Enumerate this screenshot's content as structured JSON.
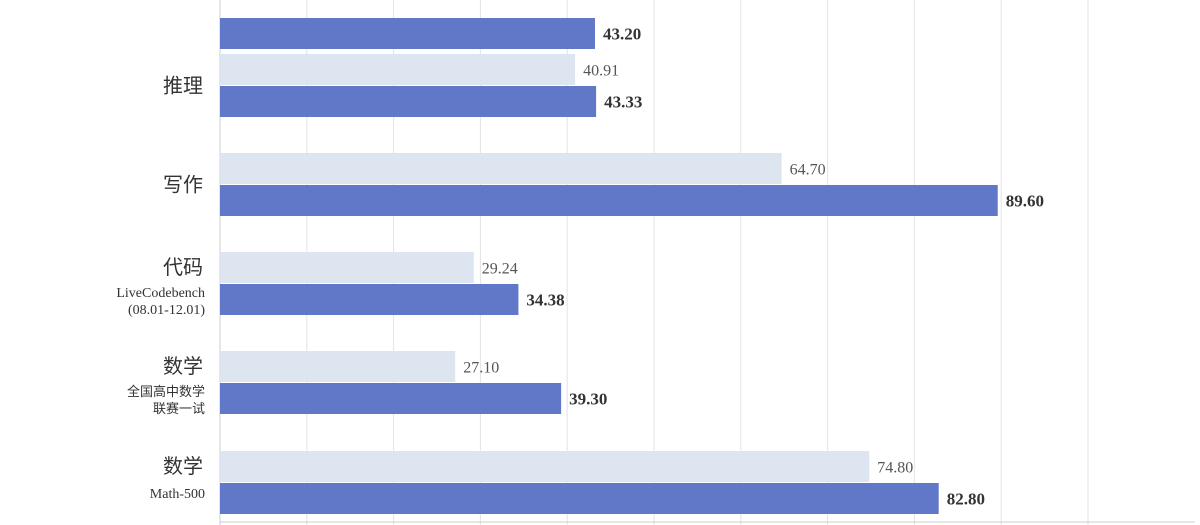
{
  "chart_data": {
    "type": "bar",
    "orientation": "horizontal",
    "grid": true,
    "xlim": [
      0,
      100
    ],
    "categories": [
      {
        "title": "",
        "subtitle": []
      },
      {
        "title": "推理",
        "subtitle": []
      },
      {
        "title": "写作",
        "subtitle": []
      },
      {
        "title": "代码",
        "subtitle": [
          "LiveCodebench",
          "(08.01-12.01)"
        ]
      },
      {
        "title": "数学",
        "subtitle": [
          "全国高中数学",
          "联赛一试"
        ]
      },
      {
        "title": "数学",
        "subtitle": [
          "Math-500"
        ]
      }
    ],
    "series": [
      {
        "color": "#dde5f0",
        "values": [
          null,
          40.91,
          64.7,
          29.24,
          27.1,
          74.8
        ],
        "labels": [
          "",
          "40.91",
          "64.70",
          "29.24",
          "27.10",
          "74.80"
        ]
      },
      {
        "color": "#6177c8",
        "values": [
          43.2,
          43.33,
          89.6,
          34.38,
          39.3,
          82.8
        ],
        "labels": [
          "43.20",
          "43.33",
          "89.60",
          "34.38",
          "39.30",
          "82.80"
        ]
      }
    ],
    "colors": {
      "grid": "#e3e3e3",
      "axis": "#cccccc"
    }
  }
}
